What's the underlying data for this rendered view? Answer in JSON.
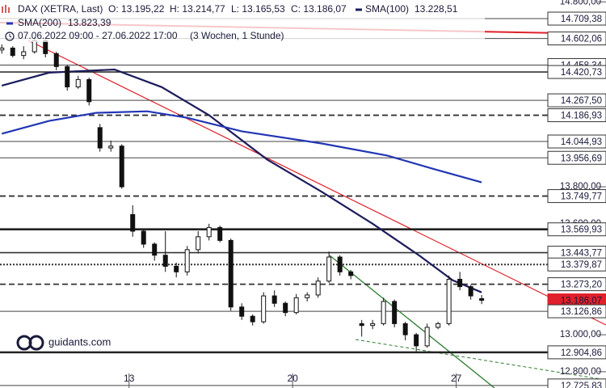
{
  "chart_data": {
    "type": "candlestick",
    "title": "DAX (XETRA, Last)",
    "ohlc_labels": [
      "O: 13.195,22",
      "H: 13.214,77",
      "L: 13.165,53",
      "C: 13.186,07"
    ],
    "period": "07.06.2022 09:00 - 27.06.2022 17:00",
    "period_note": "(3 Wochen, 1 Stunde)",
    "brand": "guidants.com",
    "xlim": [
      -0.5,
      166.2
    ],
    "ylim": [
      12712,
      14810
    ],
    "xticks": [
      {
        "value": 35,
        "label": "13"
      },
      {
        "value": 80,
        "label": "20"
      },
      {
        "value": 125,
        "label": "27"
      }
    ],
    "yticks": [
      {
        "value": 14800,
        "label": "14.800,00"
      },
      {
        "value": 13800,
        "label": "13.800,00"
      },
      {
        "value": 13600,
        "label": "13.600,00"
      },
      {
        "value": 13000,
        "label": "13.000,00"
      },
      {
        "value": 12800,
        "label": "12.800,00"
      }
    ],
    "candles": {
      "x": [
        0,
        3,
        6,
        9,
        12,
        15,
        18,
        21,
        24,
        27,
        30,
        33,
        36,
        39,
        42,
        45,
        48,
        51,
        54,
        57,
        60,
        63,
        66,
        69,
        72,
        75,
        78,
        81,
        84,
        87,
        90,
        93,
        96,
        99,
        102,
        105,
        108,
        111,
        114,
        117,
        120,
        123,
        126,
        129,
        132
      ],
      "open": [
        14540,
        14550,
        14510,
        14530,
        14590,
        14520,
        14450,
        14340,
        14380,
        14120,
        14010,
        14020,
        13650,
        13560,
        13490,
        13430,
        13370,
        13340,
        13460,
        13530,
        13580,
        13510,
        13150,
        13100,
        13070,
        13210,
        13170,
        13120,
        13200,
        13215,
        13290,
        13420,
        13340,
        13060,
        13050,
        13060,
        13180,
        13060,
        13000,
        12940,
        13040,
        13060,
        13300,
        13260,
        13195.22
      ],
      "high": [
        14570,
        14560,
        14560,
        14610,
        14600,
        14530,
        14460,
        14400,
        14390,
        14140,
        14050,
        14030,
        13700,
        13570,
        13500,
        13560,
        13390,
        13480,
        13560,
        13600,
        13590,
        13520,
        13170,
        13110,
        13230,
        13240,
        13180,
        13220,
        13230,
        13310,
        13450,
        13430,
        13350,
        13080,
        13080,
        13200,
        13190,
        13070,
        13010,
        13060,
        13070,
        13320,
        13340,
        13270,
        13214.77
      ],
      "low": [
        14520,
        14500,
        14490,
        14520,
        14500,
        14430,
        14320,
        14330,
        14240,
        13990,
        13990,
        13790,
        13530,
        13470,
        13400,
        13340,
        13310,
        13320,
        13440,
        13510,
        13500,
        13130,
        13080,
        13050,
        13060,
        13150,
        13100,
        13110,
        13180,
        13200,
        13280,
        13320,
        13300,
        12990,
        13030,
        13050,
        13040,
        12970,
        12910,
        12930,
        13030,
        13050,
        13240,
        13190,
        13165.53
      ],
      "close": [
        14550,
        14510,
        14530,
        14590,
        14520,
        14450,
        14340,
        14380,
        14260,
        14010,
        14020,
        13800,
        13560,
        13490,
        13430,
        13370,
        13340,
        13460,
        13530,
        13580,
        13510,
        13150,
        13100,
        13070,
        13210,
        13170,
        13120,
        13200,
        13215,
        13290,
        13420,
        13340,
        13320,
        13050,
        13060,
        13180,
        13060,
        13000,
        12940,
        13040,
        13060,
        13300,
        13260,
        13210,
        13186.07
      ]
    },
    "series": [
      {
        "name": "SMA(100)",
        "last_label": "13.228,51",
        "color": "#1c1c5c",
        "x": [
          0,
          13,
          31,
          44,
          57,
          73,
          88,
          102,
          115,
          124,
          132
        ],
        "values": [
          14347,
          14417,
          14434,
          14339,
          14187,
          13947,
          13773,
          13600,
          13426,
          13295,
          13229
        ]
      },
      {
        "name": "SMA(200)",
        "last_label": "13.823,39",
        "color": "#2236b4",
        "x": [
          0,
          13,
          26,
          40,
          51,
          66,
          88,
          106,
          119,
          132
        ],
        "values": [
          14087,
          14156,
          14200,
          14208,
          14173,
          14100,
          14034,
          13969,
          13895,
          13824
        ]
      }
    ],
    "levels": [
      {
        "value": 14709.38,
        "label": "14.709,38",
        "style": "thin"
      },
      {
        "value": 14602.06,
        "label": "14.602,06",
        "style": "thin"
      },
      {
        "value": 14458.34,
        "label": "14.458,34",
        "style": "thin"
      },
      {
        "value": 14420.73,
        "label": "14.420,73",
        "style": "medium"
      },
      {
        "value": 14267.5,
        "label": "14.267,50",
        "style": "thin"
      },
      {
        "value": 14186.93,
        "label": "14.186,93",
        "style": "dashed"
      },
      {
        "value": 14044.93,
        "label": "14.044,93",
        "style": "thin"
      },
      {
        "value": 13956.69,
        "label": "13.956,69",
        "style": "thin"
      },
      {
        "value": 13749.77,
        "label": "13.749,77",
        "style": "dashed"
      },
      {
        "value": 13569.93,
        "label": "13.569,93",
        "style": "thick"
      },
      {
        "value": 13443.77,
        "label": "13.443,77",
        "style": "medium"
      },
      {
        "value": 13379.87,
        "label": "13.379,87",
        "style": "dotted"
      },
      {
        "value": 13273.2,
        "label": "13.273,20",
        "style": "dashed"
      },
      {
        "value": 13186.07,
        "label": "13.186,07",
        "style": "current"
      },
      {
        "value": 13126.86,
        "label": "13.126,86",
        "style": "thin"
      },
      {
        "value": 12904.86,
        "label": "12.904,86",
        "style": "thick"
      },
      {
        "value": 12725.83,
        "label": "12.725,83",
        "style": "thin"
      }
    ]
  }
}
